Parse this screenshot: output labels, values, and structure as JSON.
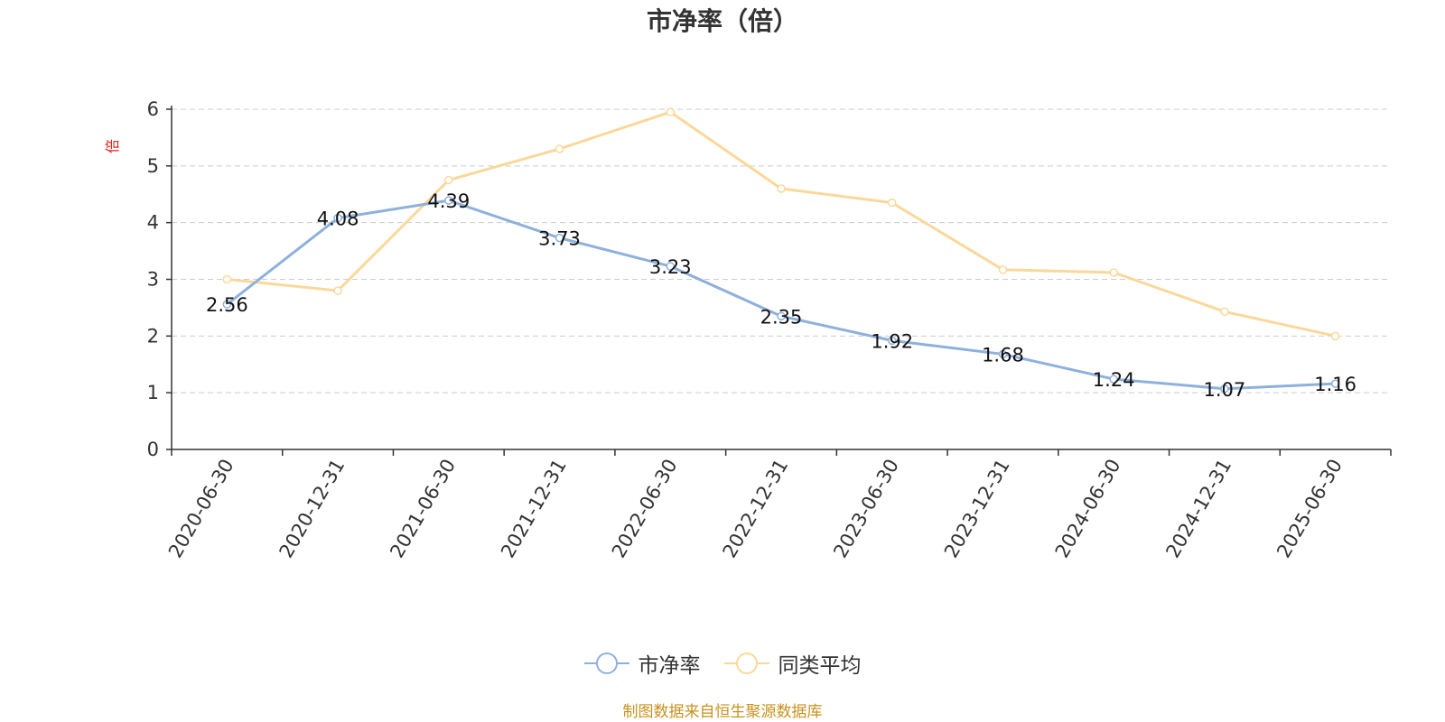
{
  "chart_data": {
    "type": "line",
    "title": "市净率（倍）",
    "ylabel": "倍",
    "categories": [
      "2020-06-30",
      "2020-12-31",
      "2021-06-30",
      "2021-12-31",
      "2022-06-30",
      "2022-12-31",
      "2023-06-30",
      "2023-12-31",
      "2024-06-30",
      "2024-12-31",
      "2025-06-30"
    ],
    "ylim": [
      0,
      6
    ],
    "yticks": [
      0,
      1,
      2,
      3,
      4,
      5,
      6
    ],
    "grid": true,
    "legend_position": "bottom-center",
    "series": [
      {
        "name": "市净率",
        "color": "#8eb0dc",
        "values": [
          2.56,
          4.08,
          4.39,
          3.73,
          3.23,
          2.35,
          1.92,
          1.68,
          1.24,
          1.07,
          1.16
        ],
        "show_labels": true
      },
      {
        "name": "同类平均",
        "color": "#fad89a",
        "values": [
          3.0,
          2.8,
          4.75,
          5.3,
          5.95,
          4.6,
          4.35,
          3.17,
          3.12,
          2.43,
          2.0
        ],
        "show_labels": false
      }
    ]
  },
  "colors": {
    "unit_label": "#e0201b",
    "source_note": "#c8921e"
  },
  "footer": {
    "source_note": "制图数据来自恒生聚源数据库"
  }
}
